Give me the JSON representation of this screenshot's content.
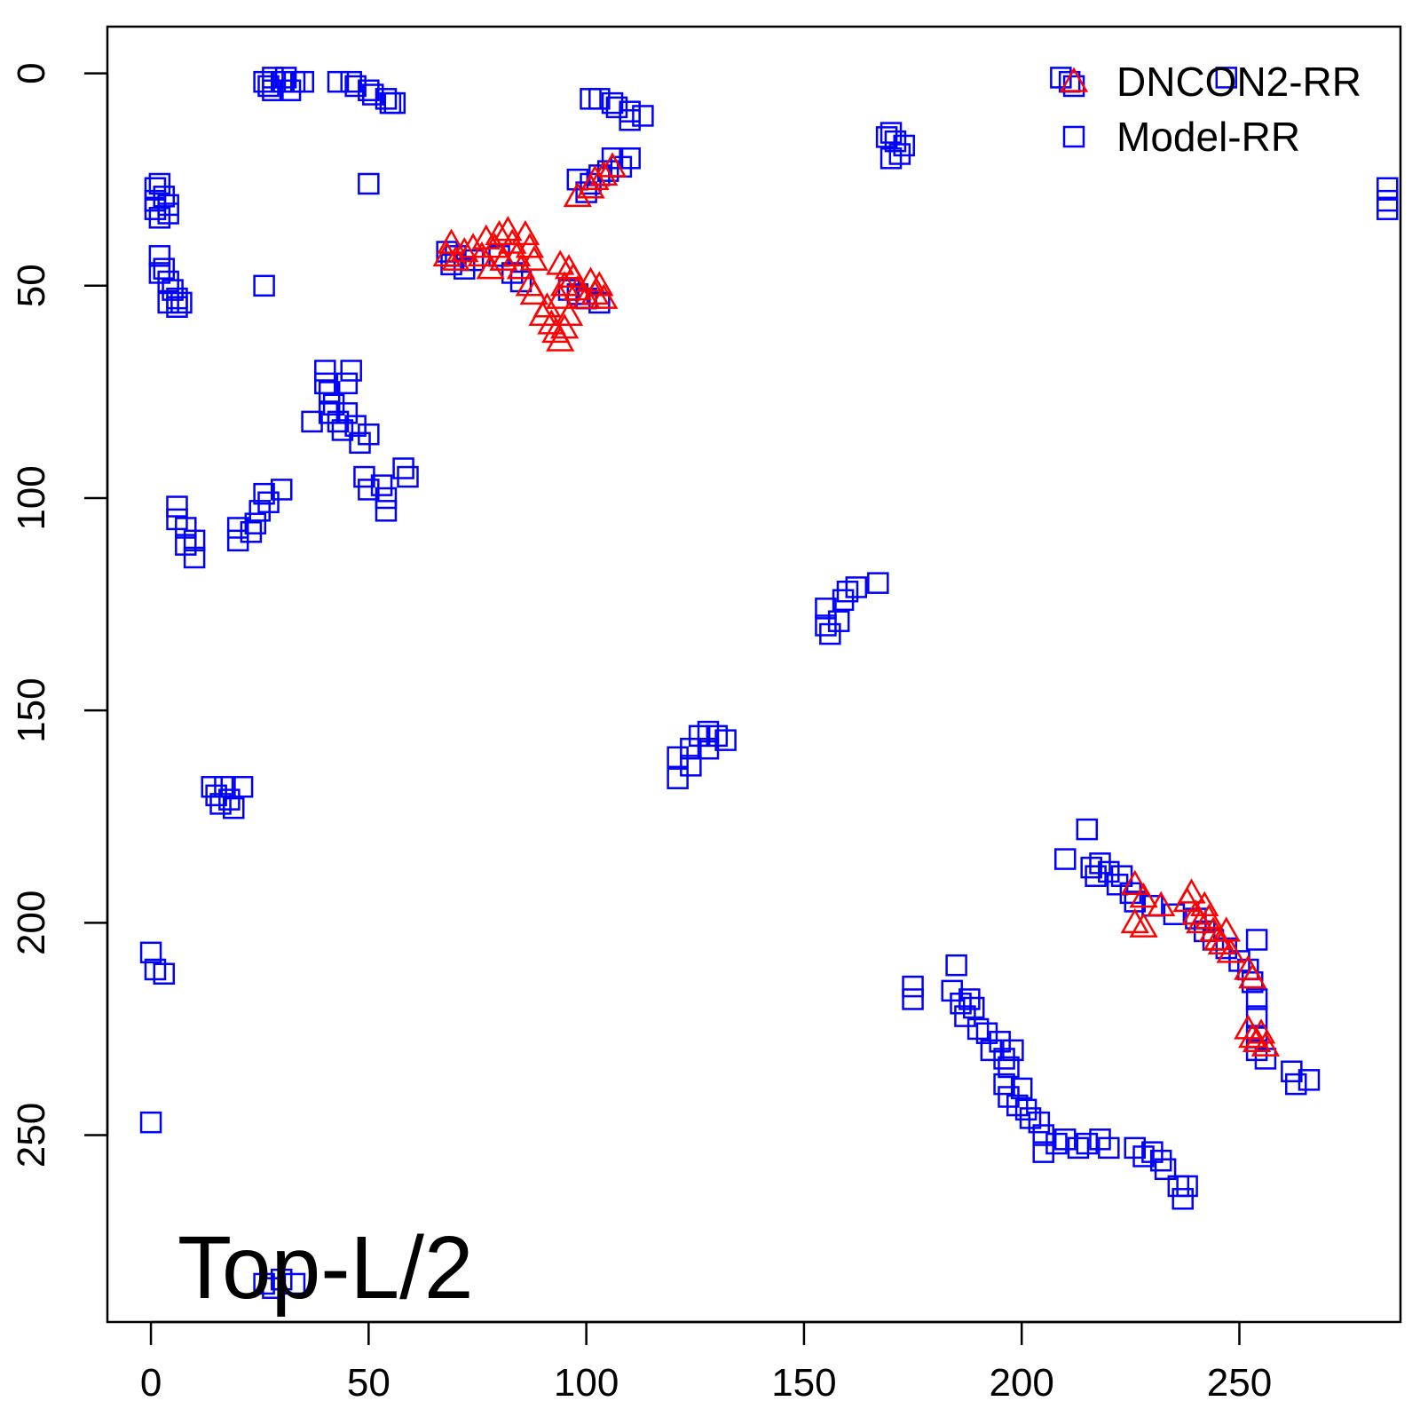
{
  "chart_data": {
    "type": "scatter",
    "title": "",
    "xlabel": "",
    "ylabel": "",
    "xlim": [
      -10,
      287
    ],
    "ylim": [
      294,
      -11
    ],
    "y_reversed": true,
    "grid": false,
    "x_ticks": [
      0,
      50,
      100,
      150,
      200,
      250
    ],
    "y_ticks": [
      0,
      50,
      100,
      150,
      200,
      250
    ],
    "x_tick_labels": [
      "0",
      "50",
      "100",
      "150",
      "200",
      "250"
    ],
    "y_tick_labels": [
      "0",
      "50",
      "100",
      "150",
      "200",
      "250"
    ],
    "annotation": "Top-L/2",
    "legend": {
      "position": "top-right",
      "entries": [
        {
          "label": "DNCON2-RR",
          "marker": "triangle",
          "color": "#ff0000"
        },
        {
          "label": "Model-RR",
          "marker": "square",
          "color": "#0000ff"
        }
      ]
    },
    "series": [
      {
        "name": "Model-RR",
        "marker": "square",
        "color": "#0000ff",
        "points": [
          [
            26,
            2
          ],
          [
            27,
            3
          ],
          [
            28,
            1
          ],
          [
            28,
            4
          ],
          [
            30,
            2
          ],
          [
            31,
            1
          ],
          [
            32,
            4
          ],
          [
            33,
            2
          ],
          [
            35,
            2
          ],
          [
            43,
            2
          ],
          [
            46,
            2
          ],
          [
            47,
            3
          ],
          [
            50,
            4
          ],
          [
            51,
            5
          ],
          [
            54,
            6
          ],
          [
            55,
            7
          ],
          [
            56,
            7
          ],
          [
            50,
            26
          ],
          [
            26,
            50
          ],
          [
            101,
            6
          ],
          [
            103,
            6
          ],
          [
            106,
            7
          ],
          [
            107,
            8
          ],
          [
            110,
            9
          ],
          [
            110,
            11
          ],
          [
            113,
            10
          ],
          [
            209,
            1
          ],
          [
            211,
            2
          ],
          [
            212,
            3
          ],
          [
            247,
            1
          ],
          [
            169,
            15
          ],
          [
            170,
            14
          ],
          [
            171,
            16
          ],
          [
            173,
            17
          ],
          [
            172,
            19
          ],
          [
            170,
            20
          ],
          [
            284,
            27
          ],
          [
            284,
            30
          ],
          [
            284,
            32
          ],
          [
            98,
            25
          ],
          [
            100,
            28
          ],
          [
            101,
            26
          ],
          [
            103,
            24
          ],
          [
            105,
            23
          ],
          [
            106,
            20
          ],
          [
            108,
            22
          ],
          [
            110,
            20
          ],
          [
            1,
            27
          ],
          [
            1,
            30
          ],
          [
            1,
            32
          ],
          [
            2,
            26
          ],
          [
            2,
            34
          ],
          [
            3,
            29
          ],
          [
            4,
            31
          ],
          [
            4,
            33
          ],
          [
            2,
            43
          ],
          [
            2,
            47
          ],
          [
            3,
            46
          ],
          [
            4,
            49
          ],
          [
            5,
            51
          ],
          [
            6,
            53
          ],
          [
            4,
            54
          ],
          [
            6,
            55
          ],
          [
            7,
            54
          ],
          [
            68,
            42
          ],
          [
            69,
            45
          ],
          [
            70,
            43
          ],
          [
            72,
            46
          ],
          [
            74,
            44
          ],
          [
            80,
            43
          ],
          [
            83,
            47
          ],
          [
            85,
            49
          ],
          [
            96,
            51
          ],
          [
            98,
            52
          ],
          [
            100,
            53
          ],
          [
            103,
            54
          ],
          [
            40,
            70
          ],
          [
            40,
            73
          ],
          [
            41,
            75
          ],
          [
            42,
            78
          ],
          [
            41,
            80
          ],
          [
            43,
            82
          ],
          [
            44,
            84
          ],
          [
            45,
            80
          ],
          [
            45,
            73
          ],
          [
            46,
            70
          ],
          [
            37,
            82
          ],
          [
            47,
            83
          ],
          [
            48,
            87
          ],
          [
            50,
            85
          ],
          [
            49,
            95
          ],
          [
            50,
            98
          ],
          [
            53,
            97
          ],
          [
            54,
            100
          ],
          [
            54,
            103
          ],
          [
            58,
            93
          ],
          [
            59,
            95
          ],
          [
            6,
            102
          ],
          [
            6,
            105
          ],
          [
            8,
            107
          ],
          [
            8,
            111
          ],
          [
            10,
            110
          ],
          [
            10,
            114
          ],
          [
            20,
            107
          ],
          [
            20,
            110
          ],
          [
            23,
            108
          ],
          [
            24,
            106
          ],
          [
            25,
            103
          ],
          [
            26,
            99
          ],
          [
            27,
            101
          ],
          [
            30,
            98
          ],
          [
            155,
            126
          ],
          [
            155,
            130
          ],
          [
            156,
            132
          ],
          [
            158,
            129
          ],
          [
            159,
            124
          ],
          [
            160,
            122
          ],
          [
            162,
            121
          ],
          [
            167,
            120
          ],
          [
            121,
            161
          ],
          [
            121,
            166
          ],
          [
            124,
            159
          ],
          [
            124,
            163
          ],
          [
            126,
            156
          ],
          [
            128,
            155
          ],
          [
            128,
            159
          ],
          [
            130,
            156
          ],
          [
            132,
            157
          ],
          [
            14,
            168
          ],
          [
            15,
            170
          ],
          [
            16,
            172
          ],
          [
            17,
            168
          ],
          [
            18,
            171
          ],
          [
            19,
            173
          ],
          [
            21,
            168
          ],
          [
            210,
            185
          ],
          [
            215,
            178
          ],
          [
            216,
            187
          ],
          [
            217,
            189
          ],
          [
            218,
            186
          ],
          [
            220,
            188
          ],
          [
            222,
            191
          ],
          [
            223,
            189
          ],
          [
            225,
            193
          ],
          [
            226,
            195
          ],
          [
            230,
            196
          ],
          [
            235,
            198
          ],
          [
            240,
            199
          ],
          [
            242,
            202
          ],
          [
            244,
            204
          ],
          [
            247,
            206
          ],
          [
            250,
            209
          ],
          [
            252,
            211
          ],
          [
            253,
            214
          ],
          [
            254,
            204
          ],
          [
            254,
            218
          ],
          [
            254,
            222
          ],
          [
            254,
            227
          ],
          [
            254,
            230
          ],
          [
            256,
            232
          ],
          [
            262,
            235
          ],
          [
            266,
            237
          ],
          [
            263,
            238
          ],
          [
            0,
            207
          ],
          [
            1,
            211
          ],
          [
            3,
            212
          ],
          [
            0,
            247
          ],
          [
            175,
            215
          ],
          [
            175,
            218
          ],
          [
            184,
            216
          ],
          [
            185,
            210
          ],
          [
            186,
            219
          ],
          [
            187,
            222
          ],
          [
            188,
            218
          ],
          [
            189,
            220
          ],
          [
            190,
            225
          ],
          [
            192,
            226
          ],
          [
            193,
            230
          ],
          [
            195,
            228
          ],
          [
            196,
            232
          ],
          [
            197,
            234
          ],
          [
            198,
            230
          ],
          [
            196,
            238
          ],
          [
            197,
            241
          ],
          [
            199,
            243
          ],
          [
            200,
            239
          ],
          [
            201,
            244
          ],
          [
            202,
            246
          ],
          [
            204,
            247
          ],
          [
            205,
            250
          ],
          [
            205,
            254
          ],
          [
            208,
            252
          ],
          [
            210,
            251
          ],
          [
            213,
            253
          ],
          [
            215,
            252
          ],
          [
            218,
            251
          ],
          [
            220,
            253
          ],
          [
            226,
            253
          ],
          [
            228,
            255
          ],
          [
            230,
            254
          ],
          [
            232,
            256
          ],
          [
            233,
            258
          ],
          [
            236,
            262
          ],
          [
            237,
            265
          ],
          [
            238,
            262
          ],
          [
            26,
            285
          ],
          [
            28,
            286
          ],
          [
            30,
            284
          ],
          [
            33,
            285
          ]
        ]
      },
      {
        "name": "DNCON2-RR",
        "marker": "triangle",
        "color": "#ff0000",
        "points": [
          [
            98,
            29
          ],
          [
            101,
            27
          ],
          [
            102,
            25
          ],
          [
            104,
            24
          ],
          [
            106,
            22
          ],
          [
            68,
            43
          ],
          [
            69,
            40
          ],
          [
            70,
            44
          ],
          [
            72,
            42
          ],
          [
            74,
            41
          ],
          [
            76,
            43
          ],
          [
            77,
            39
          ],
          [
            78,
            46
          ],
          [
            79,
            41
          ],
          [
            80,
            38
          ],
          [
            81,
            44
          ],
          [
            82,
            37
          ],
          [
            83,
            40
          ],
          [
            84,
            43
          ],
          [
            85,
            46
          ],
          [
            86,
            38
          ],
          [
            87,
            41
          ],
          [
            88,
            44
          ],
          [
            87,
            50
          ],
          [
            88,
            52
          ],
          [
            90,
            57
          ],
          [
            91,
            55
          ],
          [
            92,
            59
          ],
          [
            93,
            61
          ],
          [
            94,
            63
          ],
          [
            95,
            60
          ],
          [
            96,
            57
          ],
          [
            94,
            53
          ],
          [
            95,
            50
          ],
          [
            97,
            48
          ],
          [
            98,
            51
          ],
          [
            100,
            53
          ],
          [
            101,
            49
          ],
          [
            102,
            52
          ],
          [
            103,
            50
          ],
          [
            104,
            53
          ],
          [
            96,
            46
          ],
          [
            94,
            45
          ],
          [
            226,
            191
          ],
          [
            228,
            194
          ],
          [
            226,
            200
          ],
          [
            228,
            201
          ],
          [
            232,
            196
          ],
          [
            238,
            195
          ],
          [
            239,
            193
          ],
          [
            240,
            198
          ],
          [
            241,
            200
          ],
          [
            242,
            196
          ],
          [
            243,
            199
          ],
          [
            244,
            202
          ],
          [
            245,
            204
          ],
          [
            246,
            205
          ],
          [
            247,
            202
          ],
          [
            248,
            207
          ],
          [
            252,
            211
          ],
          [
            253,
            213
          ],
          [
            252,
            225
          ],
          [
            253,
            227
          ],
          [
            254,
            228
          ],
          [
            255,
            226
          ],
          [
            256,
            229
          ]
        ]
      }
    ]
  }
}
